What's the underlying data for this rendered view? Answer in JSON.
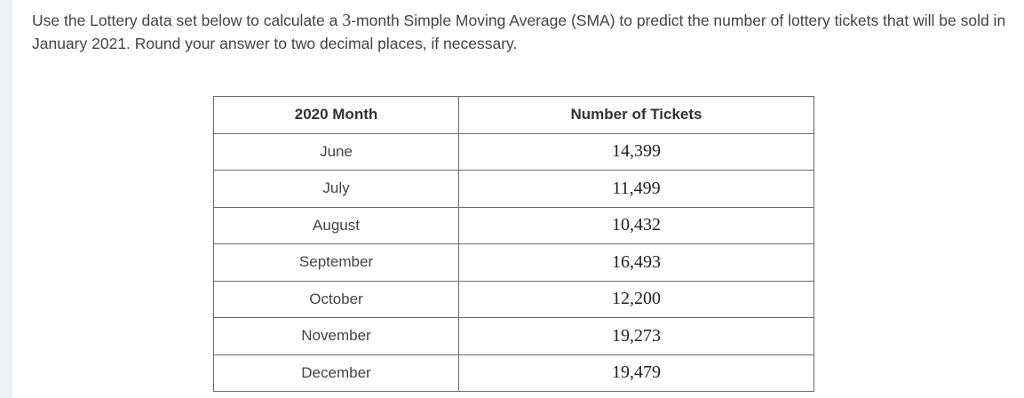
{
  "question": {
    "text_before": "Use the Lottery data set below to calculate a ",
    "period_number": "3",
    "text_after": "-month Simple Moving Average (SMA) to predict the number of lottery tickets that will be sold in January 2021. Round your answer to two decimal places, if necessary."
  },
  "table": {
    "headers": [
      "2020 Month",
      "Number of Tickets"
    ],
    "rows": [
      {
        "month": "June",
        "tickets": "14,399"
      },
      {
        "month": "July",
        "tickets": "11,499"
      },
      {
        "month": "August",
        "tickets": "10,432"
      },
      {
        "month": "September",
        "tickets": "16,493"
      },
      {
        "month": "October",
        "tickets": "12,200"
      },
      {
        "month": "November",
        "tickets": "19,273"
      },
      {
        "month": "December",
        "tickets": "19,479"
      }
    ]
  },
  "colors": {
    "border": "#6b6b6b",
    "text": "#444444",
    "sidebar": "#eef0f3"
  }
}
